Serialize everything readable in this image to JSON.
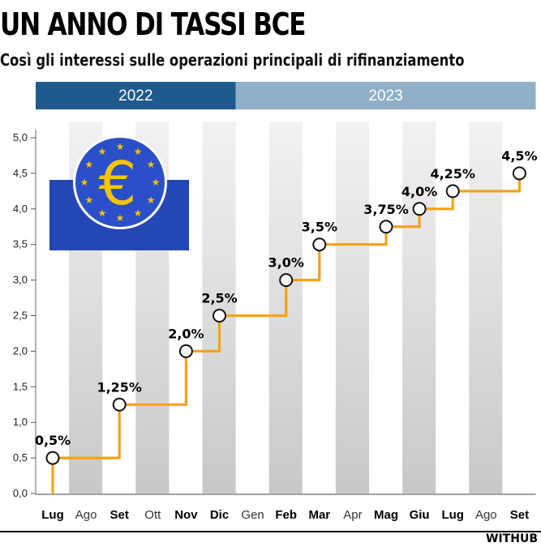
{
  "header": {
    "title": "UN ANNO DI TASSI BCE",
    "subtitle": "Così gli interessi sulle operazioni principali di rifinanziamento"
  },
  "credit": "WITHUB",
  "logo": {
    "icon": "ecb-euro-logo-icon",
    "bg_color": "#2547b5",
    "circle_color": "#2a4fc9",
    "symbol_color": "#f5c400"
  },
  "colors": {
    "line": "#f5a214",
    "year_2022": "#1f5a8c",
    "year_2023": "#8fb0c6",
    "stripe": "#c8c8c8"
  },
  "chart_data": {
    "type": "line",
    "title": "UN ANNO DI TASSI BCE",
    "subtitle": "Così gli interessi sulle operazioni principali di rifinanziamento",
    "years": [
      {
        "label": "2022",
        "months": 6
      },
      {
        "label": "2023",
        "months": 9
      }
    ],
    "categories": [
      "Lug",
      "Ago",
      "Set",
      "Ott",
      "Nov",
      "Dic",
      "Gen",
      "Feb",
      "Mar",
      "Apr",
      "Mag",
      "Giu",
      "Lug",
      "Ago",
      "Set"
    ],
    "bold_categories": [
      0,
      2,
      4,
      5,
      7,
      8,
      10,
      11,
      12,
      14
    ],
    "ylim": [
      0,
      5
    ],
    "yticks": [
      "0,0",
      "0,5",
      "1,0",
      "1,5",
      "2,0",
      "2,5",
      "3,0",
      "3,5",
      "4,0",
      "4,5",
      "5,0"
    ],
    "grid": false,
    "step": true,
    "series": [
      {
        "points": [
          {
            "x": "Lug",
            "y": 0.5,
            "label": "0,5%"
          },
          {
            "x": "Set",
            "y": 1.25,
            "label": "1,25%"
          },
          {
            "x": "Nov",
            "y": 2.0,
            "label": "2,0%"
          },
          {
            "x": "Dic",
            "y": 2.5,
            "label": "2,5%"
          },
          {
            "x": "Feb",
            "y": 3.0,
            "label": "3,0%"
          },
          {
            "x": "Mar",
            "y": 3.5,
            "label": "3,5%"
          },
          {
            "x": "Mag",
            "y": 3.75,
            "label": "3,75%"
          },
          {
            "x": "Giu",
            "y": 4.0,
            "label": "4,0%"
          },
          {
            "x": "Lug",
            "y": 4.25,
            "label": "4,25%"
          },
          {
            "x": "Set",
            "y": 4.5,
            "label": "4,5%"
          }
        ]
      }
    ]
  }
}
